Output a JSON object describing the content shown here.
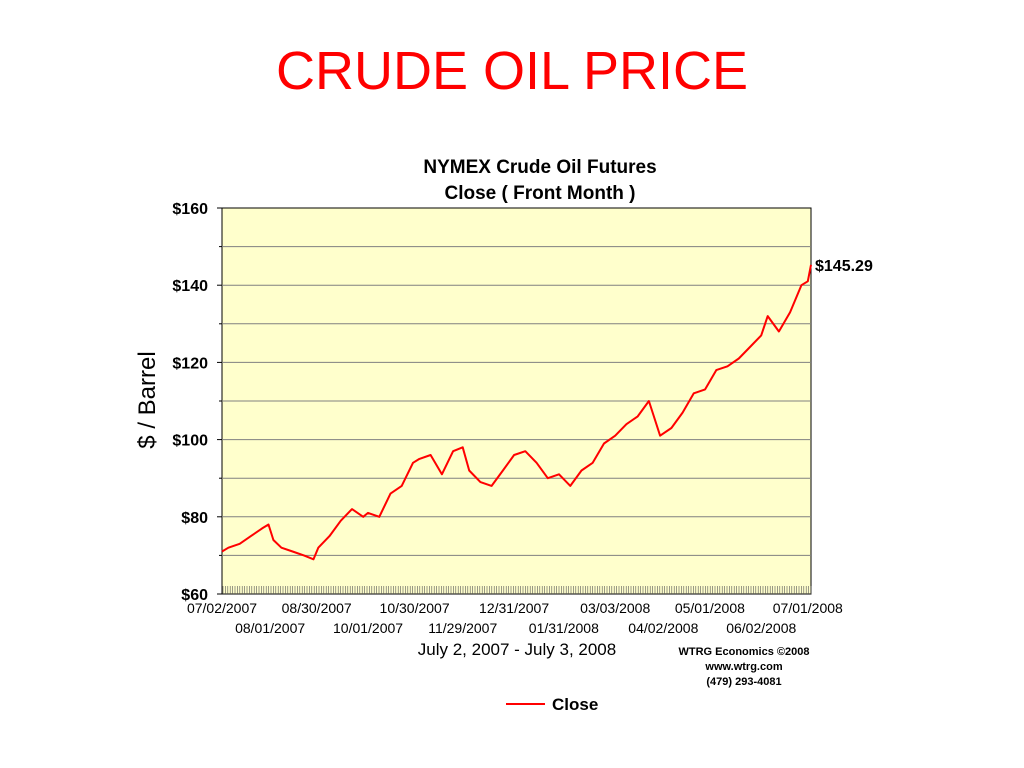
{
  "slide": {
    "title": "CRUDE OIL PRICE"
  },
  "colors": {
    "title": "#ff0000",
    "series": "#ff0000",
    "plot_bg": "#ffffcc",
    "grid": "#808080"
  },
  "chart_data": {
    "type": "line",
    "title": "NYMEX Crude Oil Futures",
    "subtitle": "Close ( Front Month )",
    "ylabel": "$ / Barrel",
    "xlabel": "July 2, 2007 - July 3, 2008",
    "ylim": [
      60,
      160
    ],
    "yticks": [
      60,
      80,
      100,
      120,
      140,
      160
    ],
    "ytick_labels": [
      "$60",
      "$80",
      "$100",
      "$120",
      "$140",
      "$160"
    ],
    "xlim": [
      "2007-07-02",
      "2008-07-03"
    ],
    "xticks_upper": [
      "07/02/2007",
      "08/30/2007",
      "10/30/2007",
      "12/31/2007",
      "03/03/2008",
      "05/01/2008",
      "07/01/2008"
    ],
    "xticks_lower": [
      "08/01/2007",
      "10/01/2007",
      "11/29/2007",
      "01/31/2008",
      "04/02/2008",
      "06/02/2008"
    ],
    "grid": "horizontal",
    "legend_position": "bottom",
    "end_label": "$145.29",
    "credits": [
      "WTRG Economics ©2008",
      "www.wtrg.com",
      "(479) 293-4081"
    ],
    "series": [
      {
        "name": "Close",
        "color": "#ff0000",
        "x": [
          "2007-07-02",
          "2007-07-06",
          "2007-07-13",
          "2007-07-20",
          "2007-07-27",
          "2007-07-31",
          "2007-08-03",
          "2007-08-08",
          "2007-08-15",
          "2007-08-22",
          "2007-08-28",
          "2007-08-31",
          "2007-09-07",
          "2007-09-14",
          "2007-09-21",
          "2007-09-28",
          "2007-10-01",
          "2007-10-08",
          "2007-10-15",
          "2007-10-22",
          "2007-10-29",
          "2007-11-02",
          "2007-11-09",
          "2007-11-16",
          "2007-11-23",
          "2007-11-29",
          "2007-12-03",
          "2007-12-10",
          "2007-12-17",
          "2007-12-24",
          "2007-12-31",
          "2008-01-07",
          "2008-01-14",
          "2008-01-21",
          "2008-01-28",
          "2008-02-04",
          "2008-02-11",
          "2008-02-18",
          "2008-02-25",
          "2008-03-03",
          "2008-03-10",
          "2008-03-17",
          "2008-03-24",
          "2008-03-31",
          "2008-04-07",
          "2008-04-14",
          "2008-04-21",
          "2008-04-28",
          "2008-05-05",
          "2008-05-12",
          "2008-05-19",
          "2008-05-26",
          "2008-06-02",
          "2008-06-06",
          "2008-06-13",
          "2008-06-20",
          "2008-06-27",
          "2008-07-01",
          "2008-07-03"
        ],
        "values": [
          71,
          72,
          73,
          75,
          77,
          78,
          74,
          72,
          71,
          70,
          69,
          72,
          75,
          79,
          82,
          80,
          81,
          80,
          86,
          88,
          94,
          95,
          96,
          91,
          97,
          98,
          92,
          89,
          88,
          92,
          96,
          97,
          94,
          90,
          91,
          88,
          92,
          94,
          99,
          101,
          104,
          106,
          110,
          101,
          103,
          107,
          112,
          113,
          118,
          119,
          121,
          124,
          127,
          132,
          128,
          133,
          140,
          141,
          145.29
        ]
      }
    ]
  }
}
